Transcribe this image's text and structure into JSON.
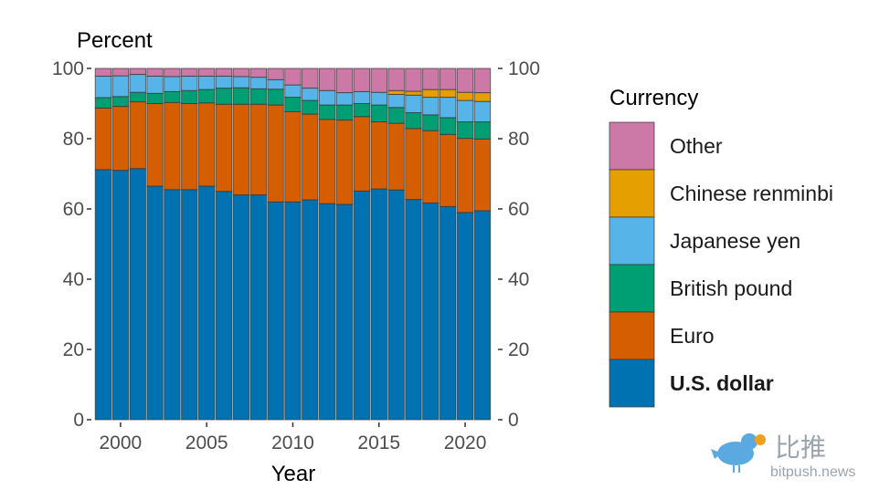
{
  "chart_data": {
    "type": "bar",
    "stacked": true,
    "ylabel": "Percent",
    "xlabel": "Year",
    "ylim": [
      0,
      100
    ],
    "yticks": [
      "0",
      "20",
      "40",
      "60",
      "80",
      "100"
    ],
    "xticks": [
      "2000",
      "2005",
      "2010",
      "2015",
      "2020"
    ],
    "categories": [
      1999,
      2000,
      2001,
      2002,
      2003,
      2004,
      2005,
      2006,
      2007,
      2008,
      2009,
      2010,
      2011,
      2012,
      2013,
      2014,
      2015,
      2016,
      2017,
      2018,
      2019,
      2020,
      2021
    ],
    "legend_title": "Currency",
    "legend_position": "right",
    "series": [
      {
        "name": "U.S. dollar",
        "color": "#0072B2",
        "values": [
          71.2,
          71.0,
          71.5,
          66.5,
          65.5,
          65.5,
          66.5,
          65.0,
          64.0,
          64.0,
          62.0,
          62.0,
          62.6,
          61.5,
          61.3,
          65.1,
          65.7,
          65.4,
          62.7,
          61.7,
          60.7,
          59.0,
          59.5
        ]
      },
      {
        "name": "Euro",
        "color": "#D55E00",
        "values": [
          17.5,
          18.2,
          19.0,
          23.5,
          24.8,
          24.5,
          23.7,
          24.8,
          25.8,
          25.8,
          27.6,
          25.7,
          24.4,
          24.0,
          24.0,
          21.2,
          19.1,
          19.0,
          20.2,
          20.6,
          20.5,
          21.1,
          20.4
        ]
      },
      {
        "name": "British pound",
        "color": "#009E73",
        "values": [
          3.0,
          2.8,
          2.7,
          2.9,
          3.1,
          3.7,
          3.8,
          4.6,
          4.7,
          4.4,
          4.5,
          4.1,
          3.9,
          4.1,
          4.3,
          3.7,
          4.8,
          4.5,
          4.5,
          4.5,
          4.8,
          4.7,
          4.9
        ]
      },
      {
        "name": "Japanese yen",
        "color": "#56B4E9",
        "values": [
          6.1,
          5.9,
          5.1,
          4.9,
          4.3,
          4.1,
          3.8,
          3.4,
          3.2,
          3.3,
          2.7,
          3.5,
          3.5,
          4.1,
          3.5,
          3.4,
          3.6,
          3.7,
          5.0,
          5.0,
          5.8,
          6.1,
          5.8
        ]
      },
      {
        "name": "Chinese renminbi",
        "color": "#E69F00",
        "values": [
          0,
          0,
          0,
          0,
          0,
          0,
          0,
          0,
          0,
          0,
          0,
          0,
          0,
          0,
          0,
          0,
          0,
          1.1,
          1.1,
          2.2,
          2.2,
          2.3,
          2.5
        ]
      },
      {
        "name": "Other",
        "color": "#CC79A7",
        "values": [
          2.2,
          2.1,
          1.7,
          2.2,
          2.3,
          2.2,
          2.2,
          2.2,
          2.3,
          2.5,
          3.2,
          4.7,
          5.6,
          6.3,
          6.9,
          6.6,
          6.8,
          6.3,
          6.5,
          6.0,
          6.0,
          6.8,
          6.9
        ]
      }
    ]
  },
  "watermark": {
    "brand_cn": "比推",
    "brand_url": "bitpush.news"
  }
}
